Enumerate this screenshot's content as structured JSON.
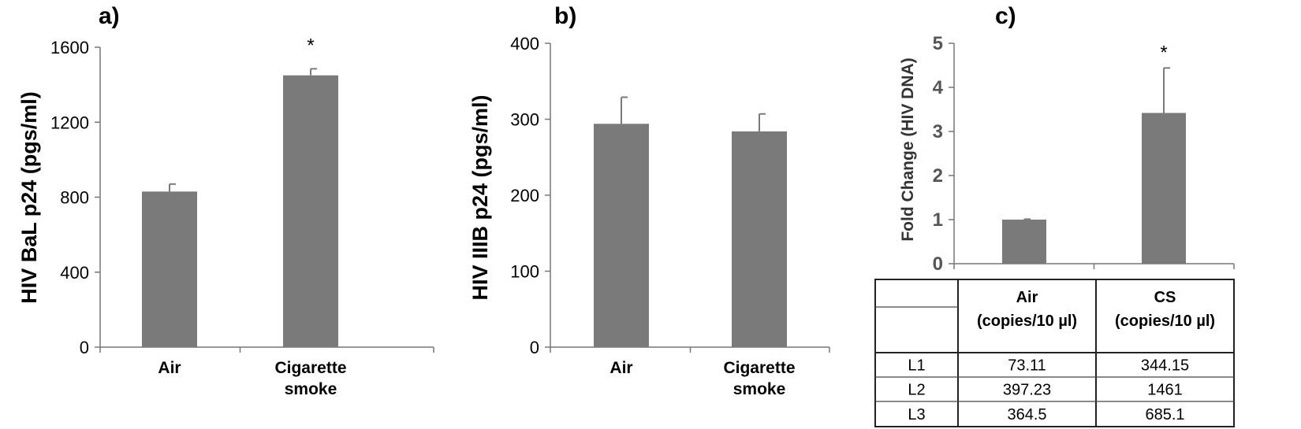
{
  "chart_data": [
    {
      "type": "bar",
      "panel": "a)",
      "title": "",
      "xlabel": "",
      "ylabel": "HIV BaL p24 (pgs/ml)",
      "ylim": [
        0,
        1600
      ],
      "yticks": [
        0,
        400,
        800,
        1200,
        1600
      ],
      "categories": [
        "Air",
        "Cigarette smoke"
      ],
      "values": [
        830,
        1450
      ],
      "errors": [
        40,
        35
      ],
      "annotations": [
        "",
        "*"
      ],
      "grid": false,
      "legend": "none"
    },
    {
      "type": "bar",
      "panel": "b)",
      "title": "",
      "xlabel": "",
      "ylabel": "HIV IIIB p24 (pgs/ml)",
      "ylim": [
        0,
        400
      ],
      "yticks": [
        0,
        100,
        200,
        300,
        400
      ],
      "categories": [
        "Air",
        "Cigarette smoke"
      ],
      "values": [
        294,
        284
      ],
      "errors": [
        35,
        23
      ],
      "annotations": [
        "",
        ""
      ],
      "grid": false,
      "legend": "none"
    },
    {
      "type": "bar",
      "panel": "c)",
      "title": "",
      "xlabel": "",
      "ylabel": "Fold Change (HIV DNA)",
      "ylim": [
        0,
        5
      ],
      "yticks": [
        0,
        1,
        2,
        3,
        4,
        5
      ],
      "categories": [
        "Air",
        "CS"
      ],
      "values": [
        1.0,
        3.42
      ],
      "errors": [
        0.01,
        1.02
      ],
      "annotations": [
        "",
        "*"
      ],
      "grid": false,
      "legend": "none"
    },
    {
      "type": "table",
      "columns": [
        {
          "label": "Air",
          "sub": "(copies/10 µl)"
        },
        {
          "label": "CS",
          "sub": "(copies/10 µl)"
        }
      ],
      "rows": [
        {
          "label": "L1",
          "values": [
            "73.11",
            "344.15"
          ]
        },
        {
          "label": "L2",
          "values": [
            "397.23",
            "1461"
          ]
        },
        {
          "label": "L3",
          "values": [
            "364.5",
            "685.1"
          ]
        }
      ]
    }
  ]
}
